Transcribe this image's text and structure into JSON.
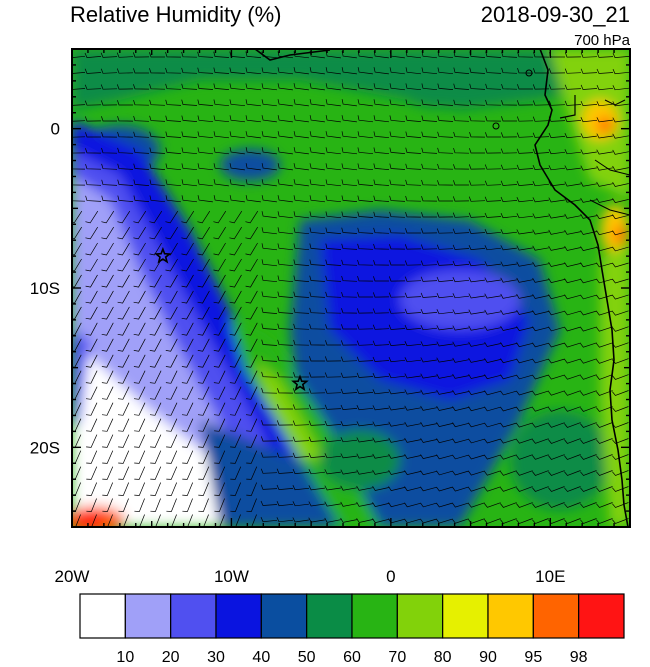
{
  "header": {
    "title": "Relative Humidity (%)",
    "datetime": "2018-09-30_21",
    "level": "700 hPa"
  },
  "map": {
    "lon_range": [
      -20,
      15
    ],
    "lat_range": [
      -25,
      5
    ],
    "x_ticks": [
      {
        "lon": -20,
        "label": "20W"
      },
      {
        "lon": -10,
        "label": "10W"
      },
      {
        "lon": 0,
        "label": "0"
      },
      {
        "lon": 10,
        "label": "10E"
      }
    ],
    "y_ticks": [
      {
        "lat": 0,
        "label": "0"
      },
      {
        "lat": -10,
        "label": "10S"
      },
      {
        "lat": -20,
        "label": "20S"
      }
    ],
    "markers": [
      {
        "type": "star",
        "lon": -14.3,
        "lat": -8.0
      },
      {
        "type": "star",
        "lon": -5.7,
        "lat": -16.0
      }
    ],
    "wind_barbs": "10-knot barbs from the west-southwest, dense grid"
  },
  "colorbar": {
    "levels": [
      "10",
      "20",
      "30",
      "40",
      "50",
      "60",
      "70",
      "80",
      "90",
      "95",
      "98"
    ],
    "colors": [
      "#ffffff",
      "#a0a0f8",
      "#5050f0",
      "#0a14e0",
      "#0a4ea0",
      "#0a8c46",
      "#28b414",
      "#82d20a",
      "#e6f000",
      "#ffc800",
      "#ff6400",
      "#ff1414"
    ]
  }
}
